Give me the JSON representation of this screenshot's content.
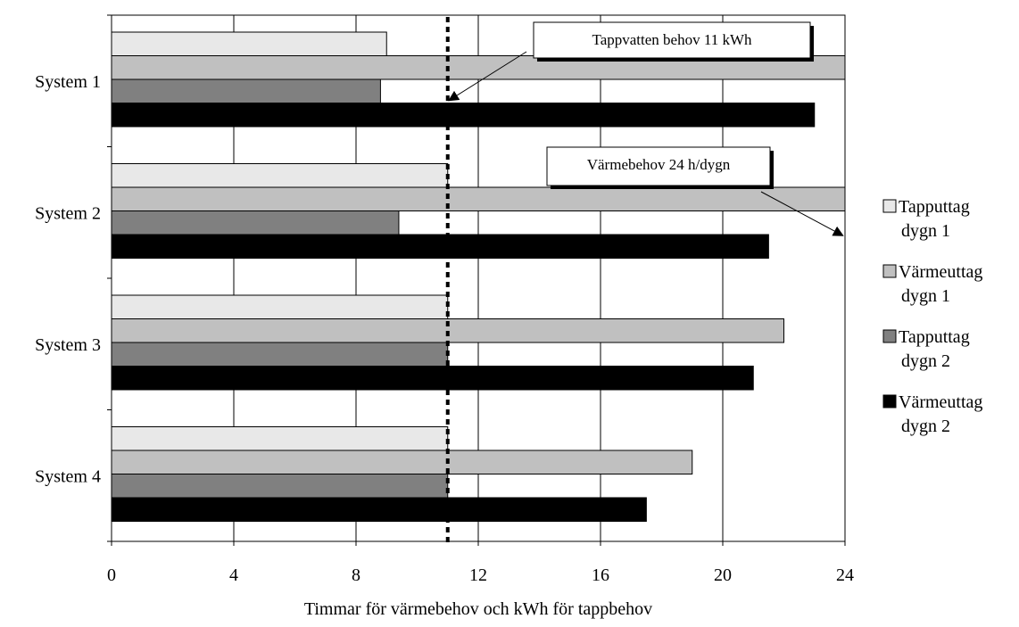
{
  "chart_data": {
    "type": "bar",
    "orientation": "horizontal",
    "xlabel": "Timmar för värmebehov och kWh för tappbehov",
    "xlim": [
      0,
      24
    ],
    "xticks": [
      "0",
      "4",
      "8",
      "12",
      "16",
      "20",
      "24"
    ],
    "grid": "vertical",
    "legend_position": "right",
    "categories": [
      "System 1",
      "System 2",
      "System 3",
      "System 4"
    ],
    "series": [
      {
        "name": "Tapputtag dygn 1",
        "legend_lines": [
          "Tapputtag",
          "dygn 1"
        ],
        "color": "#e8e8e8",
        "values": [
          9,
          11,
          11,
          11
        ]
      },
      {
        "name": "Värmeuttag dygn 1",
        "legend_lines": [
          "Värmeuttag",
          "dygn 1"
        ],
        "color": "#c0c0c0",
        "values": [
          24,
          24,
          22,
          19
        ]
      },
      {
        "name": "Tapputtag dygn 2",
        "legend_lines": [
          "Tapputtag",
          "dygn 2"
        ],
        "color": "#808080",
        "values": [
          8.8,
          9.4,
          11,
          11
        ]
      },
      {
        "name": "Värmeuttag dygn 2",
        "legend_lines": [
          "Värmeuttag",
          "dygn 2"
        ],
        "color": "#000000",
        "values": [
          23,
          21.5,
          21,
          17.5
        ]
      }
    ],
    "reference_line": {
      "x": 11,
      "style": "dotted"
    },
    "annotations": [
      {
        "text": "Tappvatten behov 11 kWh",
        "target_x": 11,
        "target_category": "System 1"
      },
      {
        "text": "Värmebehov 24 h/dygn",
        "target_x": 24,
        "target_category": "System 2"
      }
    ]
  }
}
